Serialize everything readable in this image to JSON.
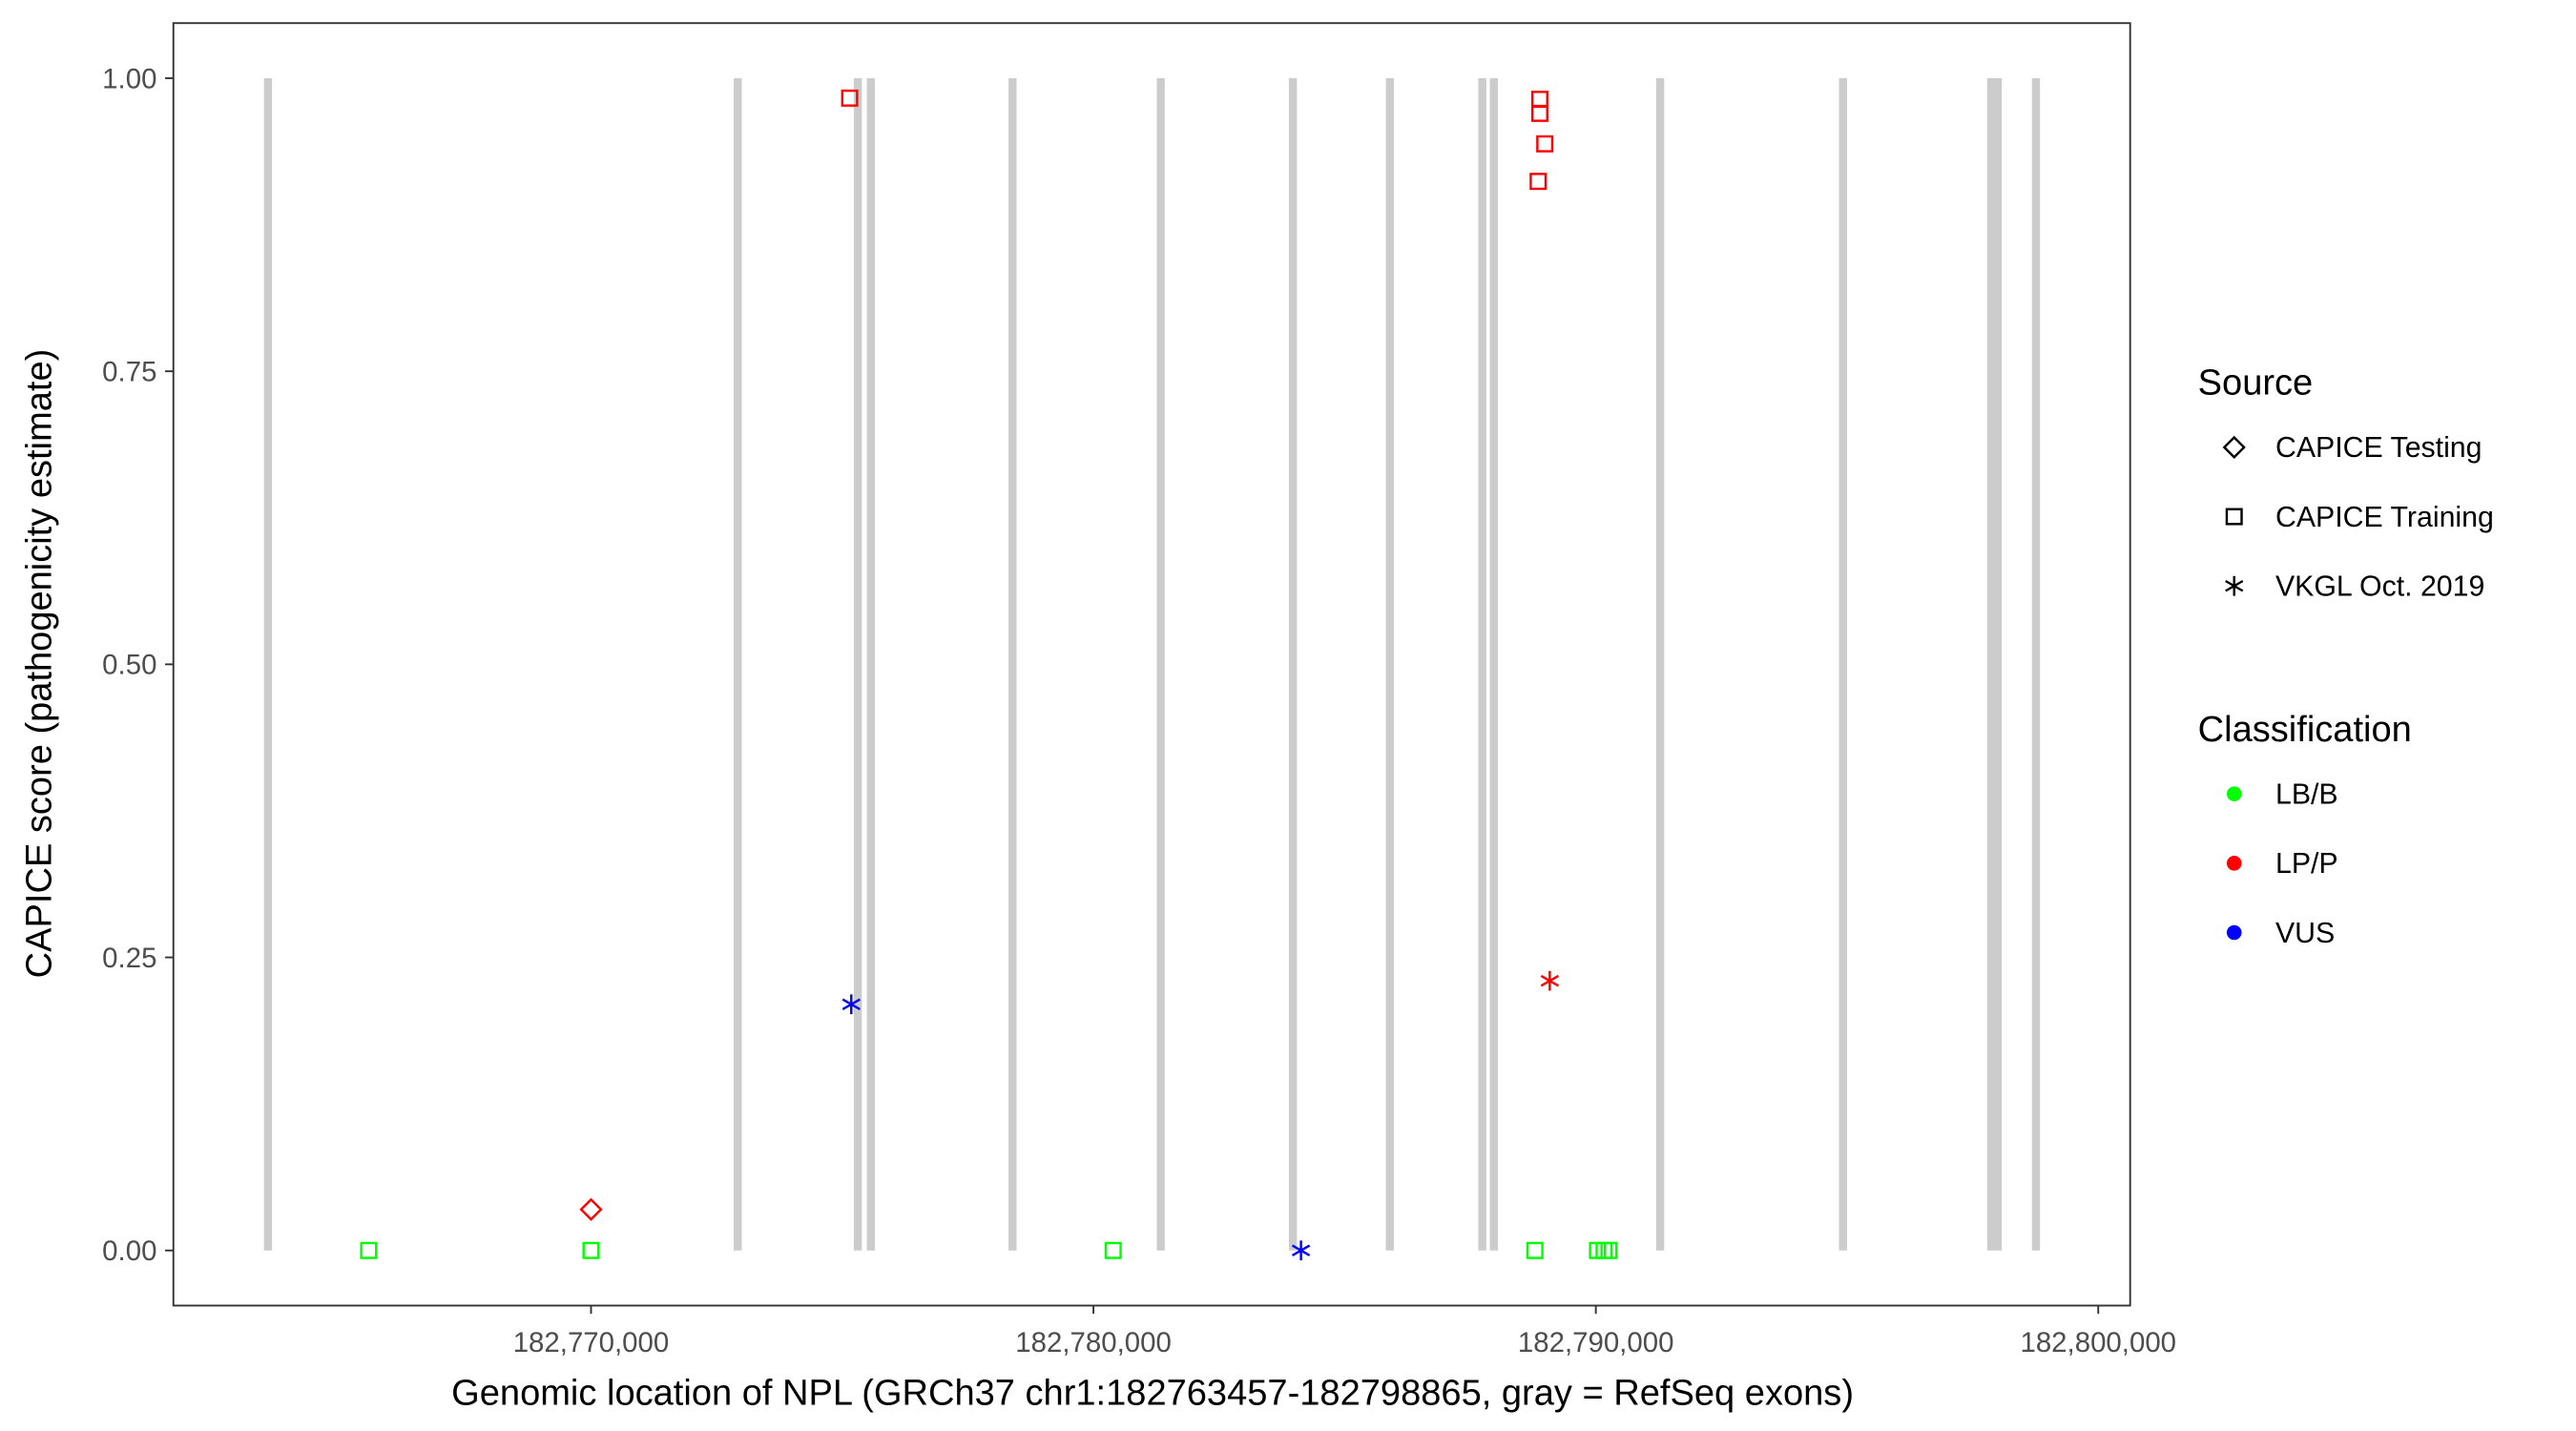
{
  "chart_data": {
    "type": "scatter",
    "xlabel": "Genomic location of NPL (GRCh37 chr1:182763457-182798865, gray = RefSeq exons)",
    "ylabel": "CAPICE score (pathogenicity estimate)",
    "xlim": [
      182761687,
      182800635
    ],
    "ylim": [
      -0.047,
      1.047
    ],
    "x_ticks": [
      182770000,
      182780000,
      182790000,
      182800000
    ],
    "x_tick_labels": [
      "182,770,000",
      "182,780,000",
      "182,790,000",
      "182,800,000"
    ],
    "y_ticks": [
      0,
      0.25,
      0.5,
      0.75,
      1.0
    ],
    "y_tick_labels": [
      "0.00",
      "0.25",
      "0.50",
      "0.75",
      "1.00"
    ],
    "grid": false,
    "legend_position": "right",
    "exon_color": "#cccccc",
    "exons": [
      [
        182763490,
        182763650
      ],
      [
        182772840,
        182773000
      ],
      [
        182775230,
        182775390
      ],
      [
        182775490,
        182775650
      ],
      [
        182778310,
        182778470
      ],
      [
        182781260,
        182781420
      ],
      [
        182783890,
        182784050
      ],
      [
        182785820,
        182785980
      ],
      [
        182787660,
        182787820
      ],
      [
        182787890,
        182788050
      ],
      [
        182791200,
        182791360
      ],
      [
        182794840,
        182795000
      ],
      [
        182797790,
        182797950
      ],
      [
        182797920,
        182798080
      ],
      [
        182798680,
        182798840
      ]
    ],
    "legend": {
      "source": {
        "title": "Source",
        "items": [
          {
            "label": "CAPICE Testing",
            "shape": "diamond"
          },
          {
            "label": "CAPICE Training",
            "shape": "square"
          },
          {
            "label": "VKGL Oct. 2019",
            "shape": "asterisk"
          }
        ]
      },
      "classification": {
        "title": "Classification",
        "items": [
          {
            "label": "LB/B",
            "color": "#00ff00"
          },
          {
            "label": "LP/P",
            "color": "#ff0000"
          },
          {
            "label": "VUS",
            "color": "#0000ff"
          }
        ]
      }
    },
    "points": [
      {
        "x": 182765574,
        "y": 0.0,
        "source": "CAPICE Training",
        "classification": "LB/B"
      },
      {
        "x": 182770000,
        "y": 0.0,
        "source": "CAPICE Training",
        "classification": "LB/B"
      },
      {
        "x": 182780393,
        "y": 0.0,
        "source": "CAPICE Training",
        "classification": "LB/B"
      },
      {
        "x": 182788787,
        "y": 0.0,
        "source": "CAPICE Training",
        "classification": "LB/B"
      },
      {
        "x": 182790033,
        "y": 0.0,
        "source": "CAPICE Training",
        "classification": "LB/B"
      },
      {
        "x": 182790164,
        "y": 0.0,
        "source": "CAPICE Training",
        "classification": "LB/B"
      },
      {
        "x": 182790262,
        "y": 0.0,
        "source": "CAPICE Training",
        "classification": "LB/B"
      },
      {
        "x": 182770000,
        "y": 0.035,
        "source": "CAPICE Testing",
        "classification": "LP/P"
      },
      {
        "x": 182775148,
        "y": 0.983,
        "source": "CAPICE Training",
        "classification": "LP/P"
      },
      {
        "x": 182788885,
        "y": 0.982,
        "source": "CAPICE Training",
        "classification": "LP/P"
      },
      {
        "x": 182788885,
        "y": 0.97,
        "source": "CAPICE Training",
        "classification": "LP/P"
      },
      {
        "x": 182788984,
        "y": 0.944,
        "source": "CAPICE Training",
        "classification": "LP/P"
      },
      {
        "x": 182788852,
        "y": 0.912,
        "source": "CAPICE Training",
        "classification": "LP/P"
      },
      {
        "x": 182775180,
        "y": 0.21,
        "source": "VKGL Oct. 2019",
        "classification": "VUS"
      },
      {
        "x": 182784131,
        "y": 0.0,
        "source": "VKGL Oct. 2019",
        "classification": "VUS"
      },
      {
        "x": 182789082,
        "y": 0.23,
        "source": "VKGL Oct. 2019",
        "classification": "LP/P"
      }
    ]
  }
}
